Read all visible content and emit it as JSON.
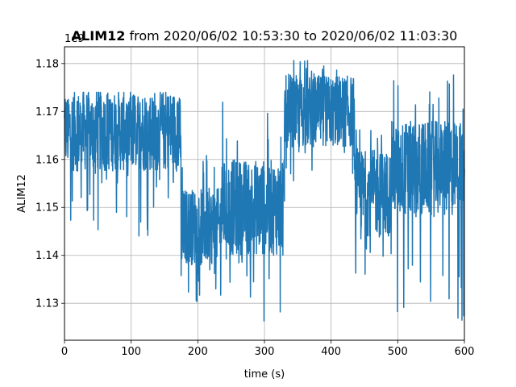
{
  "chart_data": {
    "type": "line",
    "title_bold": "ALIM12",
    "title_rest": " from 2020/06/02 10:53:30 to 2020/06/02 11:03:30",
    "xlabel": "time (s)",
    "ylabel": "ALIM12",
    "offset_text": "1e9",
    "xlim": [
      0,
      600
    ],
    "ylim": [
      1.1223,
      1.1835
    ],
    "xticks": [
      0,
      100,
      200,
      300,
      400,
      500,
      600
    ],
    "xtick_labels": [
      "0",
      "100",
      "200",
      "300",
      "400",
      "500",
      "600"
    ],
    "yticks": [
      1.13,
      1.14,
      1.15,
      1.16,
      1.17,
      1.18
    ],
    "ytick_labels": [
      "1.13",
      "1.14",
      "1.15",
      "1.16",
      "1.17",
      "1.18"
    ],
    "grid": true,
    "series": [
      {
        "color": "#1f77b4",
        "segments": [
          {
            "x0": 0,
            "x1": 175,
            "center": 1.166,
            "spread": 0.0085,
            "low": 1.144,
            "high": 1.174
          },
          {
            "x0": 175,
            "x1": 235,
            "center": 1.146,
            "spread": 0.008,
            "low": 1.13,
            "high": 1.162
          },
          {
            "x0": 235,
            "x1": 330,
            "center": 1.15,
            "spread": 0.01,
            "low": 1.126,
            "high": 1.172
          },
          {
            "x0": 330,
            "x1": 435,
            "center": 1.17,
            "spread": 0.0075,
            "low": 1.155,
            "high": 1.181
          },
          {
            "x0": 435,
            "x1": 490,
            "center": 1.153,
            "spread": 0.009,
            "low": 1.135,
            "high": 1.167
          },
          {
            "x0": 490,
            "x1": 600,
            "center": 1.158,
            "spread": 0.01,
            "low": 1.125,
            "high": 1.178
          }
        ],
        "samples_per_second": 3
      }
    ]
  }
}
